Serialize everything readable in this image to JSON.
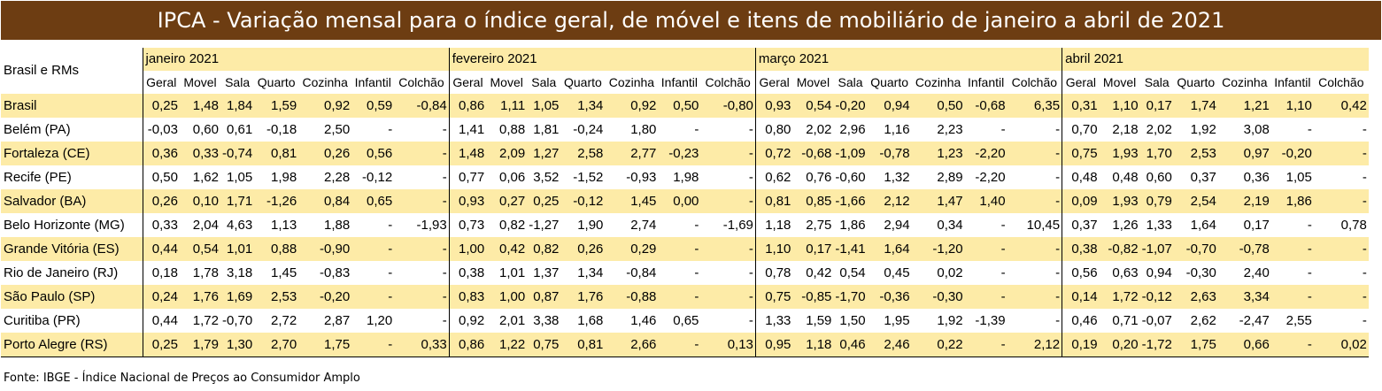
{
  "title": "IPCA - Variação mensal para o índice geral, de móvel e itens de mobiliário de janeiro a abril de 2021",
  "footer": "Fonte: IBGE - Índice Nacional de Preços ao Consumidor Amplo",
  "colors": {
    "title_bg": "#6d3d12",
    "highlight": "#fdeba7"
  },
  "chart_data": {
    "type": "table",
    "row_header": "Brasil e RMs",
    "months": [
      "janeiro 2021",
      "fevereiro 2021",
      "março 2021",
      "abril 2021"
    ],
    "columns": [
      "Geral",
      "Movel",
      "Sala",
      "Quarto",
      "Cozinha",
      "Infantil",
      "Colchão"
    ],
    "rows": [
      {
        "name": "Brasil",
        "values": [
          [
            "0,25",
            "1,48",
            "1,84",
            "1,59",
            "0,92",
            "0,59",
            "-0,84"
          ],
          [
            "0,86",
            "1,11",
            "1,05",
            "1,34",
            "0,92",
            "0,50",
            "-0,80"
          ],
          [
            "0,93",
            "0,54",
            "-0,20",
            "0,94",
            "0,50",
            "-0,68",
            "6,35"
          ],
          [
            "0,31",
            "1,10",
            "0,17",
            "1,74",
            "1,21",
            "1,10",
            "0,42"
          ]
        ]
      },
      {
        "name": "Belém (PA)",
        "values": [
          [
            "-0,03",
            "0,60",
            "0,61",
            "-0,18",
            "2,50",
            "-",
            "-"
          ],
          [
            "1,41",
            "0,88",
            "1,81",
            "-0,24",
            "1,80",
            "-",
            "-"
          ],
          [
            "0,80",
            "2,02",
            "2,96",
            "1,16",
            "2,23",
            "-",
            "-"
          ],
          [
            "0,70",
            "2,18",
            "2,02",
            "1,92",
            "3,08",
            "-",
            "-"
          ]
        ]
      },
      {
        "name": "Fortaleza (CE)",
        "values": [
          [
            "0,36",
            "0,33",
            "-0,74",
            "0,81",
            "0,26",
            "0,56",
            "-"
          ],
          [
            "1,48",
            "2,09",
            "1,27",
            "2,58",
            "2,77",
            "-0,23",
            "-"
          ],
          [
            "0,72",
            "-0,68",
            "-1,09",
            "-0,78",
            "1,23",
            "-2,20",
            "-"
          ],
          [
            "0,75",
            "1,93",
            "1,70",
            "2,53",
            "0,97",
            "-0,20",
            "-"
          ]
        ]
      },
      {
        "name": "Recife (PE)",
        "values": [
          [
            "0,50",
            "1,62",
            "1,05",
            "1,98",
            "2,28",
            "-0,12",
            "-"
          ],
          [
            "0,77",
            "0,06",
            "3,52",
            "-1,52",
            "-0,93",
            "1,98",
            "-"
          ],
          [
            "0,62",
            "0,76",
            "-0,60",
            "1,32",
            "2,89",
            "-2,20",
            "-"
          ],
          [
            "0,48",
            "0,48",
            "0,60",
            "0,37",
            "0,36",
            "1,05",
            "-"
          ]
        ]
      },
      {
        "name": "Salvador (BA)",
        "values": [
          [
            "0,26",
            "0,10",
            "1,71",
            "-1,26",
            "0,84",
            "0,65",
            "-"
          ],
          [
            "0,93",
            "0,27",
            "0,25",
            "-0,12",
            "1,45",
            "0,00",
            "-"
          ],
          [
            "0,81",
            "0,85",
            "-1,66",
            "2,12",
            "1,47",
            "1,40",
            "-"
          ],
          [
            "0,09",
            "1,93",
            "0,79",
            "2,54",
            "2,19",
            "1,86",
            "-"
          ]
        ]
      },
      {
        "name": "Belo Horizonte (MG)",
        "values": [
          [
            "0,33",
            "2,04",
            "4,63",
            "1,13",
            "1,88",
            "-",
            "-1,93"
          ],
          [
            "0,73",
            "0,82",
            "-1,27",
            "1,90",
            "2,74",
            "-",
            "-1,69"
          ],
          [
            "1,18",
            "2,75",
            "1,86",
            "2,94",
            "0,34",
            "-",
            "10,45"
          ],
          [
            "0,37",
            "1,26",
            "1,33",
            "1,64",
            "0,17",
            "-",
            "0,78"
          ]
        ]
      },
      {
        "name": "Grande Vitória (ES)",
        "values": [
          [
            "0,44",
            "0,54",
            "1,01",
            "0,88",
            "-0,90",
            "-",
            "-"
          ],
          [
            "1,00",
            "0,42",
            "0,82",
            "0,26",
            "0,29",
            "-",
            "-"
          ],
          [
            "1,10",
            "0,17",
            "-1,41",
            "1,64",
            "-1,20",
            "-",
            "-"
          ],
          [
            "0,38",
            "-0,82",
            "-1,07",
            "-0,70",
            "-0,78",
            "-",
            "-"
          ]
        ]
      },
      {
        "name": "Rio de Janeiro (RJ)",
        "values": [
          [
            "0,18",
            "1,78",
            "3,18",
            "1,45",
            "-0,83",
            "-",
            "-"
          ],
          [
            "0,38",
            "1,01",
            "1,37",
            "1,34",
            "-0,84",
            "-",
            "-"
          ],
          [
            "0,78",
            "0,42",
            "0,54",
            "0,45",
            "0,02",
            "-",
            "-"
          ],
          [
            "0,56",
            "0,63",
            "0,94",
            "-0,30",
            "2,40",
            "-",
            "-"
          ]
        ]
      },
      {
        "name": "São Paulo (SP)",
        "values": [
          [
            "0,24",
            "1,76",
            "1,69",
            "2,53",
            "-0,20",
            "-",
            "-"
          ],
          [
            "0,83",
            "1,00",
            "0,87",
            "1,76",
            "-0,88",
            "-",
            "-"
          ],
          [
            "0,75",
            "-0,85",
            "-1,70",
            "-0,36",
            "-0,30",
            "-",
            "-"
          ],
          [
            "0,14",
            "1,72",
            "-0,12",
            "2,63",
            "3,34",
            "-",
            "-"
          ]
        ]
      },
      {
        "name": "Curitiba (PR)",
        "values": [
          [
            "0,44",
            "1,72",
            "-0,70",
            "2,72",
            "2,87",
            "1,20",
            "-"
          ],
          [
            "0,92",
            "2,01",
            "3,38",
            "1,68",
            "1,46",
            "0,65",
            "-"
          ],
          [
            "1,33",
            "1,59",
            "1,50",
            "1,95",
            "1,92",
            "-1,39",
            "-"
          ],
          [
            "0,46",
            "0,71",
            "-0,07",
            "2,62",
            "-2,47",
            "2,55",
            "-"
          ]
        ]
      },
      {
        "name": "Porto Alegre (RS)",
        "values": [
          [
            "0,25",
            "1,79",
            "1,30",
            "2,70",
            "1,75",
            "-",
            "0,33"
          ],
          [
            "0,86",
            "1,22",
            "0,75",
            "0,81",
            "2,66",
            "-",
            "0,13"
          ],
          [
            "0,95",
            "1,18",
            "0,46",
            "2,46",
            "0,22",
            "-",
            "2,12"
          ],
          [
            "0,19",
            "0,20",
            "-1,72",
            "1,75",
            "0,66",
            "-",
            "0,02"
          ]
        ]
      }
    ]
  }
}
